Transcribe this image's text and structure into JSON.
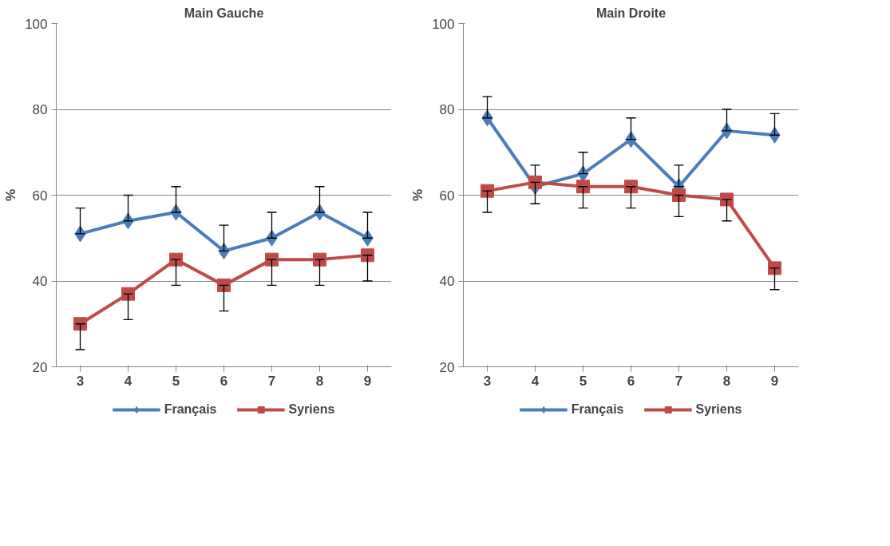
{
  "chart_data": [
    {
      "type": "line",
      "title": "Main Gauche",
      "ylabel": "%",
      "categories": [
        "3",
        "4",
        "5",
        "6",
        "7",
        "8",
        "9"
      ],
      "ylim": [
        20,
        100
      ],
      "yticks": [
        20,
        40,
        60,
        80,
        100
      ],
      "grid": "y",
      "legend": "bottom",
      "line_style": "solid",
      "series": [
        {
          "name": "Français",
          "color": "#4a7ebb",
          "marker": "diamond",
          "values": [
            51,
            54,
            56,
            47,
            50,
            56,
            50
          ],
          "errors": [
            [
              51,
              57
            ],
            [
              54,
              60
            ],
            [
              56,
              62
            ],
            [
              47,
              53
            ],
            [
              50,
              56
            ],
            [
              56,
              62
            ],
            [
              50,
              56
            ]
          ]
        },
        {
          "name": "Syriens",
          "color": "#be4b48",
          "marker": "square",
          "values": [
            30,
            37,
            45,
            39,
            45,
            45,
            46
          ],
          "errors": [
            [
              24,
              30
            ],
            [
              31,
              37
            ],
            [
              39,
              45
            ],
            [
              33,
              39
            ],
            [
              39,
              45
            ],
            [
              39,
              45
            ],
            [
              40,
              46
            ]
          ]
        }
      ]
    },
    {
      "type": "line",
      "title": "Main Droite",
      "ylabel": "%",
      "categories": [
        "3",
        "4",
        "5",
        "6",
        "7",
        "8",
        "9"
      ],
      "ylim": [
        20,
        100
      ],
      "yticks": [
        20,
        40,
        60,
        80,
        100
      ],
      "grid": "y",
      "legend": "bottom",
      "line_style": "solid",
      "series": [
        {
          "name": "Français",
          "color": "#4a7ebb",
          "marker": "diamond",
          "values": [
            78,
            62,
            65,
            73,
            62,
            75,
            74
          ],
          "errors": [
            [
              78,
              83
            ],
            [
              62,
              67
            ],
            [
              65,
              70
            ],
            [
              73,
              78
            ],
            [
              62,
              67
            ],
            [
              75,
              80
            ],
            [
              74,
              79
            ]
          ]
        },
        {
          "name": "Syriens",
          "color": "#be4b48",
          "marker": "square",
          "values": [
            61,
            63,
            62,
            62,
            60,
            59,
            43
          ],
          "errors": [
            [
              56,
              61
            ],
            [
              58,
              63
            ],
            [
              57,
              62
            ],
            [
              57,
              62
            ],
            [
              55,
              60
            ],
            [
              54,
              59
            ],
            [
              38,
              43
            ]
          ]
        }
      ]
    }
  ]
}
